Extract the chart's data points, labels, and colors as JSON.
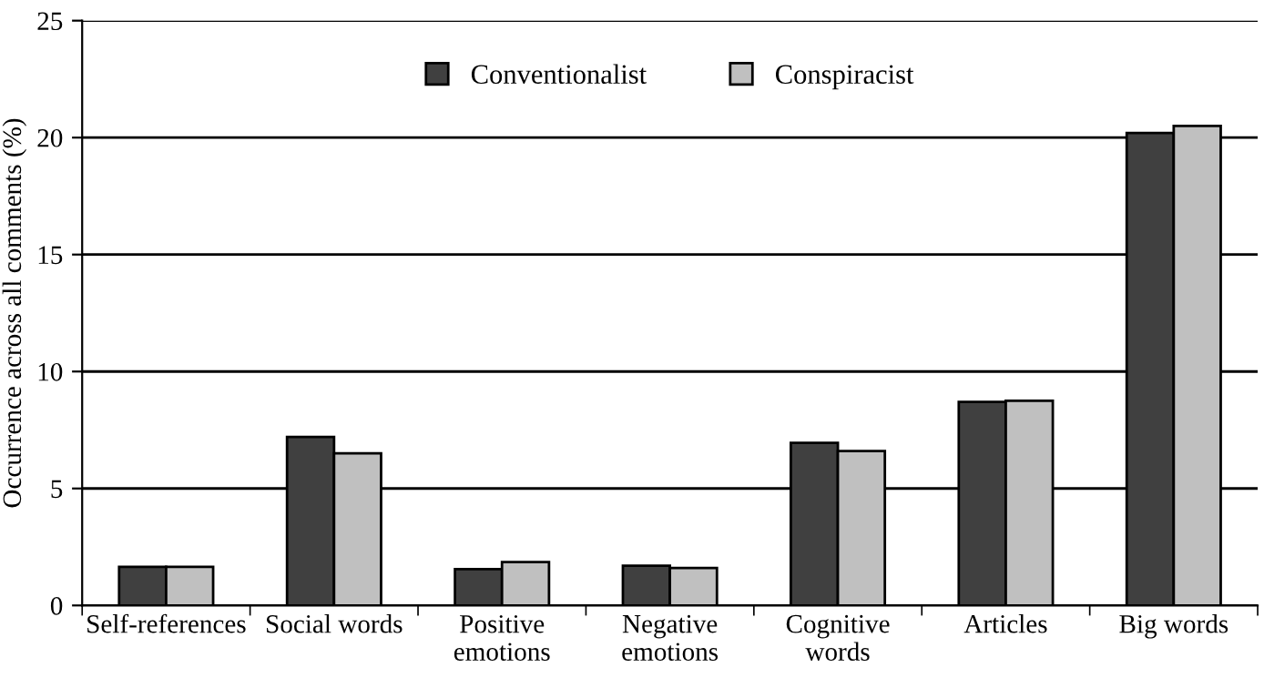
{
  "chart_data": {
    "type": "bar",
    "ylabel": "Occurrence across all comments (%)",
    "categories": [
      "Self-references",
      "Social words",
      "Positive\nemotions",
      "Negative\nemotions",
      "Cognitive\nwords",
      "Articles",
      "Big words"
    ],
    "series": [
      {
        "name": "Conventionalist",
        "color": "#404040",
        "values": [
          1.65,
          7.2,
          1.55,
          1.7,
          6.95,
          8.7,
          20.2
        ]
      },
      {
        "name": "Conspiracist",
        "color": "#c0c0c0",
        "values": [
          1.65,
          6.5,
          1.85,
          1.6,
          6.6,
          8.75,
          20.5
        ]
      }
    ],
    "ylim": [
      0,
      25
    ],
    "yticks": [
      0,
      5,
      10,
      15,
      20,
      25
    ],
    "grid": "y",
    "legend": "top"
  }
}
